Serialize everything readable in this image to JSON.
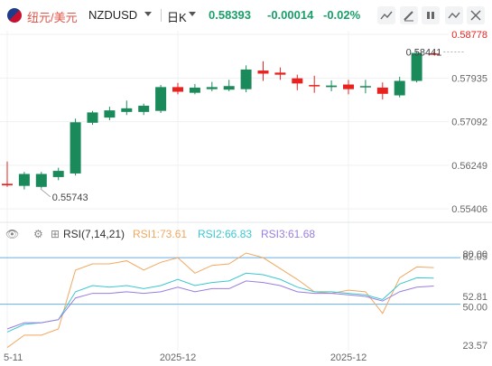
{
  "header": {
    "pair_cn": "纽元/美元",
    "symbol": "NZDUSD",
    "period": "日K",
    "last": "0.58393",
    "change": "-0.00014",
    "change_pct": "-0.02%",
    "icons": [
      "line-chart-icon",
      "draw-pen-icon",
      "clear-icon",
      "indicator-icon",
      "expand-icon",
      "close-icon"
    ]
  },
  "colors": {
    "up": "#1a8a5a",
    "down": "#e8231f",
    "rsi1": "#f0a860",
    "rsi2": "#3cc6d0",
    "rsi3": "#9a7ee0"
  },
  "chart_data": [
    {
      "type": "candlestick",
      "title": "",
      "ylim": [
        0.5525,
        0.5885
      ],
      "y_ticks": [
        "0.58778",
        "0.57935",
        "0.57092",
        "0.56249",
        "0.55406"
      ],
      "y_tick_values": [
        0.58778,
        0.57935,
        0.57092,
        0.56249,
        0.55406
      ],
      "price_line_label": "0.58778",
      "annotations": [
        {
          "text": "0.55743",
          "x_index": 2,
          "y": 0.55743
        },
        {
          "text": "0.58441",
          "x_index": 26,
          "y": 0.58441
        }
      ],
      "candles": [
        {
          "o": 0.5589,
          "h": 0.5632,
          "l": 0.5583,
          "c": 0.5586
        },
        {
          "o": 0.5585,
          "h": 0.5612,
          "l": 0.5578,
          "c": 0.5608
        },
        {
          "o": 0.5583,
          "h": 0.5612,
          "l": 0.558,
          "c": 0.5608
        },
        {
          "o": 0.5602,
          "h": 0.562,
          "l": 0.5596,
          "c": 0.5614
        },
        {
          "o": 0.5609,
          "h": 0.5715,
          "l": 0.5605,
          "c": 0.5708
        },
        {
          "o": 0.5707,
          "h": 0.573,
          "l": 0.5703,
          "c": 0.5727
        },
        {
          "o": 0.5717,
          "h": 0.5738,
          "l": 0.5712,
          "c": 0.5731
        },
        {
          "o": 0.5728,
          "h": 0.575,
          "l": 0.5722,
          "c": 0.5735
        },
        {
          "o": 0.5728,
          "h": 0.5744,
          "l": 0.5722,
          "c": 0.574
        },
        {
          "o": 0.573,
          "h": 0.578,
          "l": 0.5726,
          "c": 0.5776
        },
        {
          "o": 0.5776,
          "h": 0.5784,
          "l": 0.5762,
          "c": 0.5767
        },
        {
          "o": 0.5765,
          "h": 0.5782,
          "l": 0.5762,
          "c": 0.5775
        },
        {
          "o": 0.5772,
          "h": 0.5786,
          "l": 0.5768,
          "c": 0.5776
        },
        {
          "o": 0.5771,
          "h": 0.579,
          "l": 0.5768,
          "c": 0.5778
        },
        {
          "o": 0.5772,
          "h": 0.5818,
          "l": 0.5766,
          "c": 0.581
        },
        {
          "o": 0.5808,
          "h": 0.5826,
          "l": 0.5788,
          "c": 0.5802
        },
        {
          "o": 0.5804,
          "h": 0.5814,
          "l": 0.579,
          "c": 0.58
        },
        {
          "o": 0.5793,
          "h": 0.58,
          "l": 0.577,
          "c": 0.5783
        },
        {
          "o": 0.578,
          "h": 0.5798,
          "l": 0.5765,
          "c": 0.5779
        },
        {
          "o": 0.5776,
          "h": 0.5789,
          "l": 0.5768,
          "c": 0.5779
        },
        {
          "o": 0.5781,
          "h": 0.579,
          "l": 0.5762,
          "c": 0.5772
        },
        {
          "o": 0.5777,
          "h": 0.579,
          "l": 0.5764,
          "c": 0.5778
        },
        {
          "o": 0.5775,
          "h": 0.5785,
          "l": 0.5752,
          "c": 0.5763
        },
        {
          "o": 0.576,
          "h": 0.5796,
          "l": 0.5756,
          "c": 0.5788
        },
        {
          "o": 0.5788,
          "h": 0.5846,
          "l": 0.5785,
          "c": 0.5842
        },
        {
          "o": 0.5841,
          "h": 0.5844,
          "l": 0.5838,
          "c": 0.584
        }
      ]
    },
    {
      "type": "line",
      "title": "RSI(7,14,21)",
      "ylim": [
        20,
        90
      ],
      "y_ticks": [
        "82.05",
        "80.00",
        "52.81",
        "50.00",
        "23.57"
      ],
      "y_tick_values": [
        82.05,
        80.0,
        52.81,
        50.0,
        23.57
      ],
      "x_tick_labels": [
        {
          "text": "5-11",
          "x_index": 0
        },
        {
          "text": "2025-12",
          "x_index": 10
        },
        {
          "text": "2025-12",
          "x_index": 20
        }
      ],
      "series": [
        {
          "name": "RSI1:73.61",
          "color": "rsi1",
          "values": [
            22,
            30,
            30,
            34,
            72,
            76,
            76,
            78,
            72,
            77,
            80,
            70,
            75,
            76,
            83,
            80,
            73,
            66,
            58,
            57,
            59,
            58,
            44,
            67,
            74,
            73.61
          ]
        },
        {
          "name": "RSI2:66.83",
          "color": "rsi2",
          "values": [
            32,
            37,
            38,
            40,
            58,
            62,
            61,
            62,
            60,
            62,
            66,
            62,
            64,
            65,
            70,
            69,
            66,
            61,
            58,
            58,
            57,
            56,
            53,
            63,
            67,
            66.83
          ]
        },
        {
          "name": "RSI3:61.68",
          "color": "rsi3",
          "values": [
            34,
            38,
            38,
            40,
            54,
            57,
            57,
            58,
            57,
            58,
            61,
            58,
            60,
            60,
            65,
            64,
            62,
            58,
            57,
            57,
            56,
            55,
            52,
            58,
            61,
            61.68
          ]
        }
      ]
    }
  ]
}
